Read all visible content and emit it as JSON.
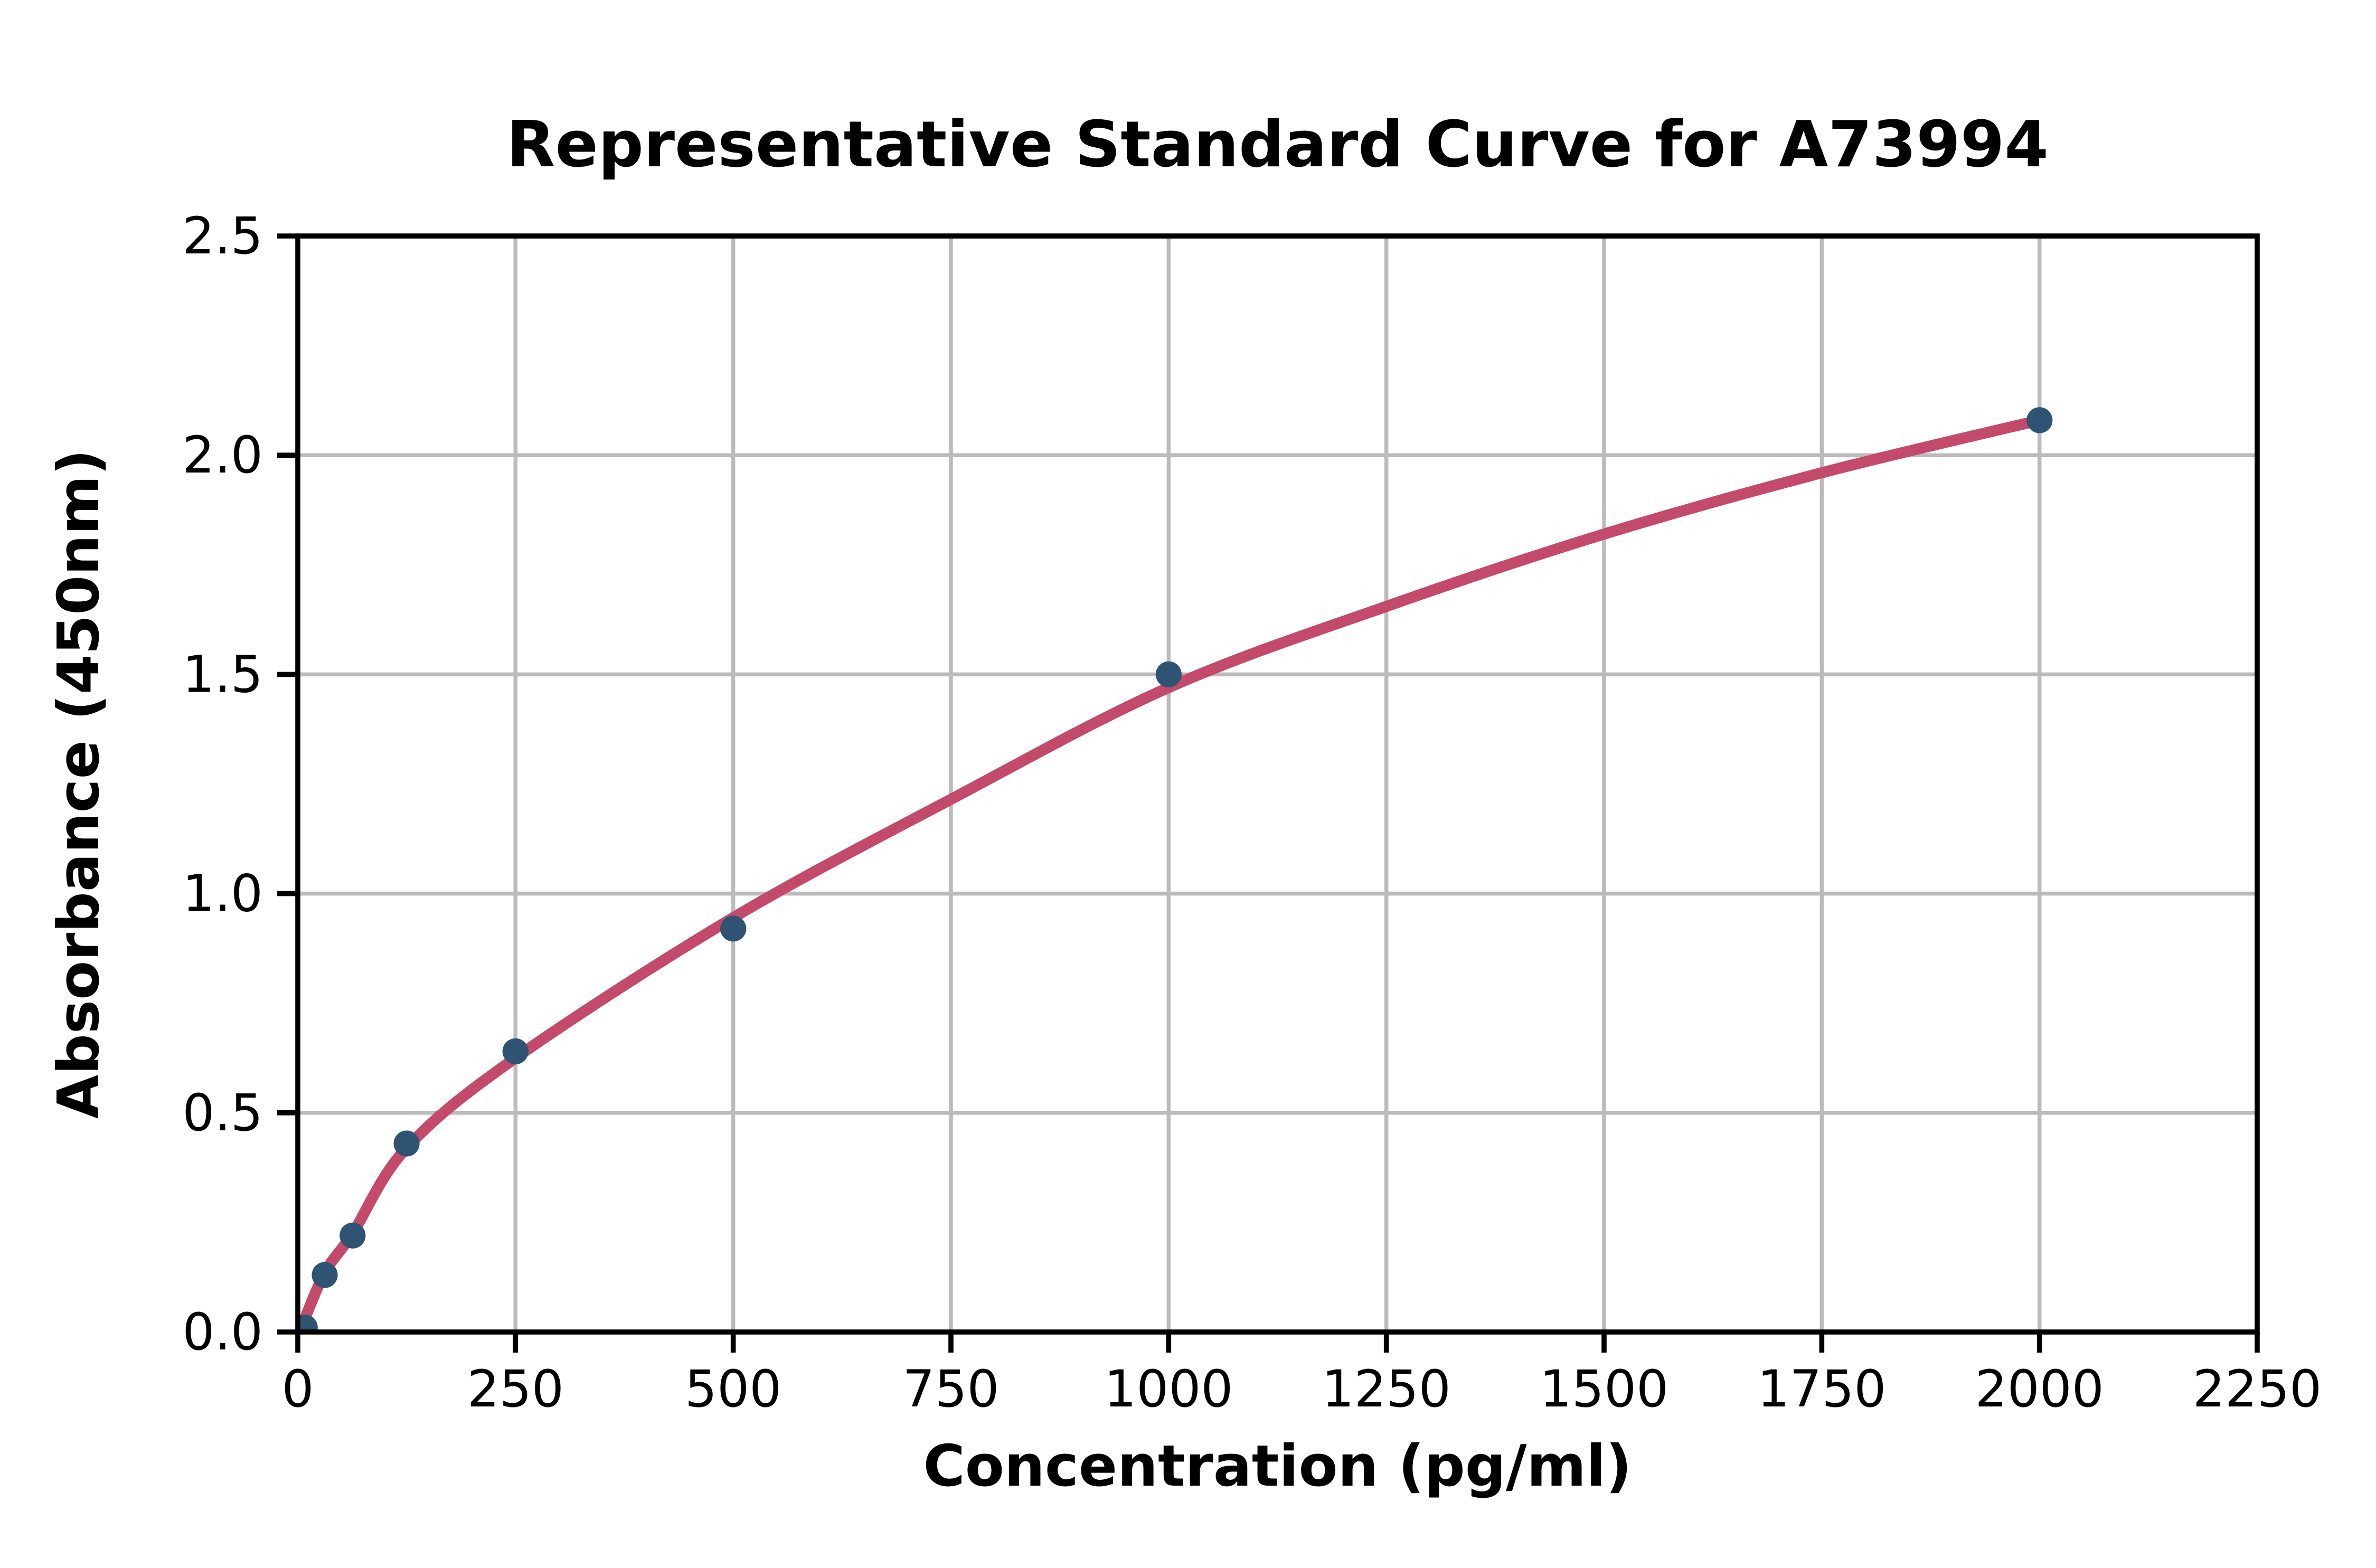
{
  "chart_data": {
    "type": "scatter",
    "title": "Representative Standard Curve for A73994",
    "xlabel": "Concentration (pg/ml)",
    "ylabel": "Absorbance (450nm)",
    "xlim": [
      0,
      2250
    ],
    "ylim": [
      0,
      2.5
    ],
    "x_ticks": [
      0,
      250,
      500,
      750,
      1000,
      1250,
      1500,
      1750,
      2000,
      2250
    ],
    "x_tick_labels": [
      "0",
      "250",
      "500",
      "750",
      "1000",
      "1250",
      "1500",
      "1750",
      "2000",
      "2250"
    ],
    "y_ticks": [
      0.0,
      0.5,
      1.0,
      1.5,
      2.0,
      2.5
    ],
    "y_tick_labels": [
      "0.0",
      "0.5",
      "1.0",
      "1.5",
      "2.0",
      "2.5"
    ],
    "grid": true,
    "legend": "none",
    "series": [
      {
        "name": "standards",
        "marker": "circle",
        "points": [
          {
            "x": 8,
            "y": 0.01
          },
          {
            "x": 31,
            "y": 0.13
          },
          {
            "x": 63,
            "y": 0.22
          },
          {
            "x": 125,
            "y": 0.43
          },
          {
            "x": 250,
            "y": 0.64
          },
          {
            "x": 500,
            "y": 0.92
          },
          {
            "x": 1000,
            "y": 1.5
          },
          {
            "x": 2000,
            "y": 2.08
          }
        ]
      },
      {
        "name": "fitted-curve",
        "marker": "none",
        "points": [
          {
            "x": 3,
            "y": 0.005
          },
          {
            "x": 31,
            "y": 0.135
          },
          {
            "x": 63,
            "y": 0.225
          },
          {
            "x": 125,
            "y": 0.42
          },
          {
            "x": 250,
            "y": 0.625
          },
          {
            "x": 500,
            "y": 0.945
          },
          {
            "x": 750,
            "y": 1.215
          },
          {
            "x": 1000,
            "y": 1.47
          },
          {
            "x": 1250,
            "y": 1.655
          },
          {
            "x": 1500,
            "y": 1.82
          },
          {
            "x": 1750,
            "y": 1.96
          },
          {
            "x": 2000,
            "y": 2.08
          }
        ]
      }
    ],
    "style": {
      "marker_color": "#2F5473",
      "curve_color": "#C44A6B",
      "grid_color": "#BBBBBB",
      "axis_color": "#000000",
      "background": "#FFFFFF"
    }
  }
}
